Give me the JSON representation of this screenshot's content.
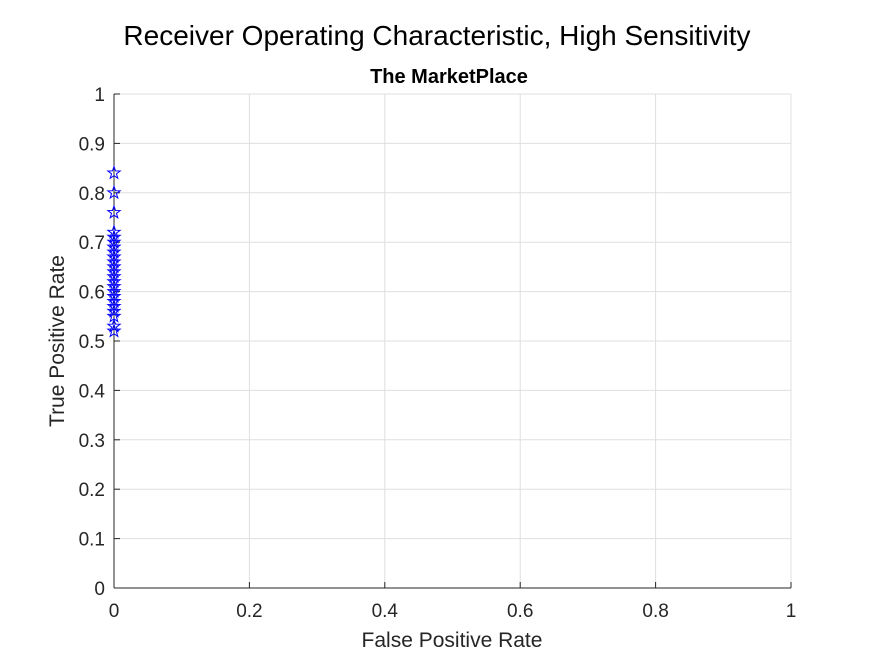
{
  "chart_data": {
    "type": "scatter",
    "title": "Receiver Operating Characteristic, High Sensitivity",
    "subtitle": "The MarketPlace",
    "xlabel": "False Positive Rate",
    "ylabel": "True Positive Rate",
    "xlim": [
      0,
      1
    ],
    "ylim": [
      0,
      1
    ],
    "xticks": [
      0,
      0.2,
      0.4,
      0.6,
      0.8,
      1
    ],
    "xtick_labels": [
      "0",
      "0.2",
      "0.4",
      "0.6",
      "0.8",
      "1"
    ],
    "yticks": [
      0,
      0.1,
      0.2,
      0.3,
      0.4,
      0.5,
      0.6,
      0.7,
      0.8,
      0.9,
      1
    ],
    "ytick_labels": [
      "0",
      "0.1",
      "0.2",
      "0.3",
      "0.4",
      "0.5",
      "0.6",
      "0.7",
      "0.8",
      "0.9",
      "1"
    ],
    "grid": true,
    "marker": "pentagram",
    "marker_color": "#0000ff",
    "series": [
      {
        "x": [
          0,
          0,
          0,
          0,
          0,
          0,
          0,
          0,
          0,
          0,
          0,
          0,
          0,
          0,
          0,
          0,
          0,
          0,
          0,
          0,
          0,
          0,
          0
        ],
        "y": [
          0.84,
          0.8,
          0.76,
          0.72,
          0.71,
          0.7,
          0.69,
          0.68,
          0.67,
          0.66,
          0.65,
          0.64,
          0.63,
          0.62,
          0.61,
          0.6,
          0.59,
          0.58,
          0.57,
          0.56,
          0.55,
          0.53,
          0.52
        ]
      }
    ]
  }
}
